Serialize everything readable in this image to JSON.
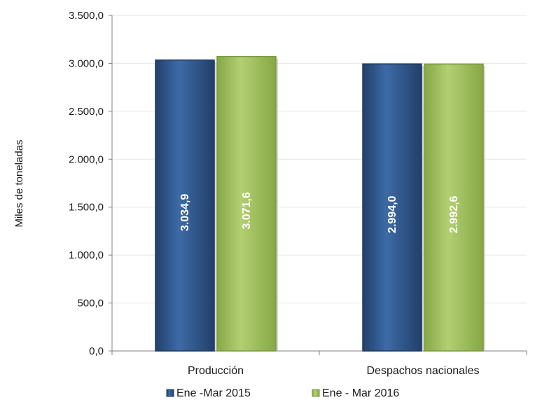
{
  "chart_data": {
    "type": "bar",
    "title": "",
    "xlabel": "",
    "ylabel": "Miles de toneladas",
    "ylim": [
      0,
      3500
    ],
    "yticks": [
      "0,0",
      "500,0",
      "1.000,0",
      "1.500,0",
      "2.000,0",
      "2.500,0",
      "3.000,0",
      "3.500,0"
    ],
    "categories": [
      "Producción",
      "Despachos nacionales"
    ],
    "grid": true,
    "legend_position": "bottom",
    "series": [
      {
        "name": "Ene -Mar 2015",
        "color": "#2c4f7f",
        "values": [
          3034.9,
          2994.0
        ],
        "labels": [
          "3.034,9",
          "2.994,0"
        ]
      },
      {
        "name": "Ene - Mar 2016",
        "color": "#9bbb59",
        "values": [
          3071.6,
          2992.6
        ],
        "labels": [
          "3.071,6",
          "2.992,6"
        ]
      }
    ]
  }
}
